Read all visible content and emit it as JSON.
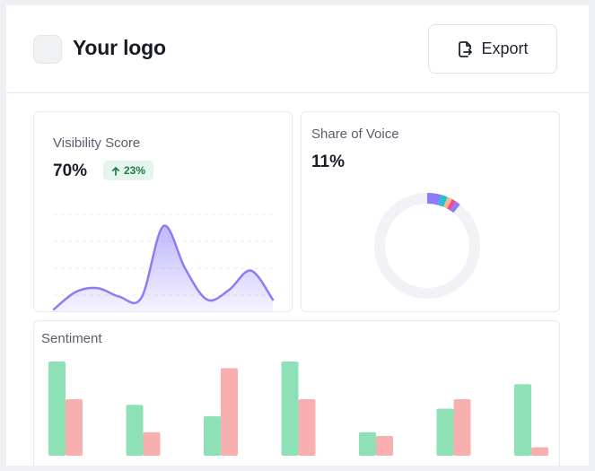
{
  "header": {
    "logo_text": "Your logo",
    "export_label": "Export",
    "export_icon": "file-export-icon"
  },
  "visibility": {
    "title": "Visibility Score",
    "value": "70%",
    "change": "23%",
    "change_icon": "arrow-up-icon",
    "series": [
      2,
      20,
      24,
      15,
      14,
      88,
      44,
      12,
      22,
      42,
      12
    ],
    "line_color": "#8b7cf6"
  },
  "share_of_voice": {
    "title": "Share of Voice",
    "value": "11%",
    "track_color": "#f1f2f5",
    "segments": [
      {
        "value": 4.3,
        "color": "#8b7cf6"
      },
      {
        "value": 2.0,
        "color": "#26bfd0"
      },
      {
        "value": 1.5,
        "color": "#f9b48a"
      },
      {
        "value": 1.4,
        "color": "#e94f93"
      },
      {
        "value": 1.5,
        "color": "#8b7cf6"
      }
    ]
  },
  "sentiment": {
    "title": "Sentiment",
    "colors": {
      "positive": "#8ee0b7",
      "negative": "#f7afaf"
    },
    "groups": [
      {
        "positive": 100,
        "negative": 60
      },
      {
        "positive": 54,
        "negative": 25
      },
      {
        "positive": 42,
        "negative": 93
      },
      {
        "positive": 100,
        "negative": 60
      },
      {
        "positive": 25,
        "negative": 21
      },
      {
        "positive": 50,
        "negative": 60
      },
      {
        "positive": 76,
        "negative": 9
      }
    ]
  }
}
